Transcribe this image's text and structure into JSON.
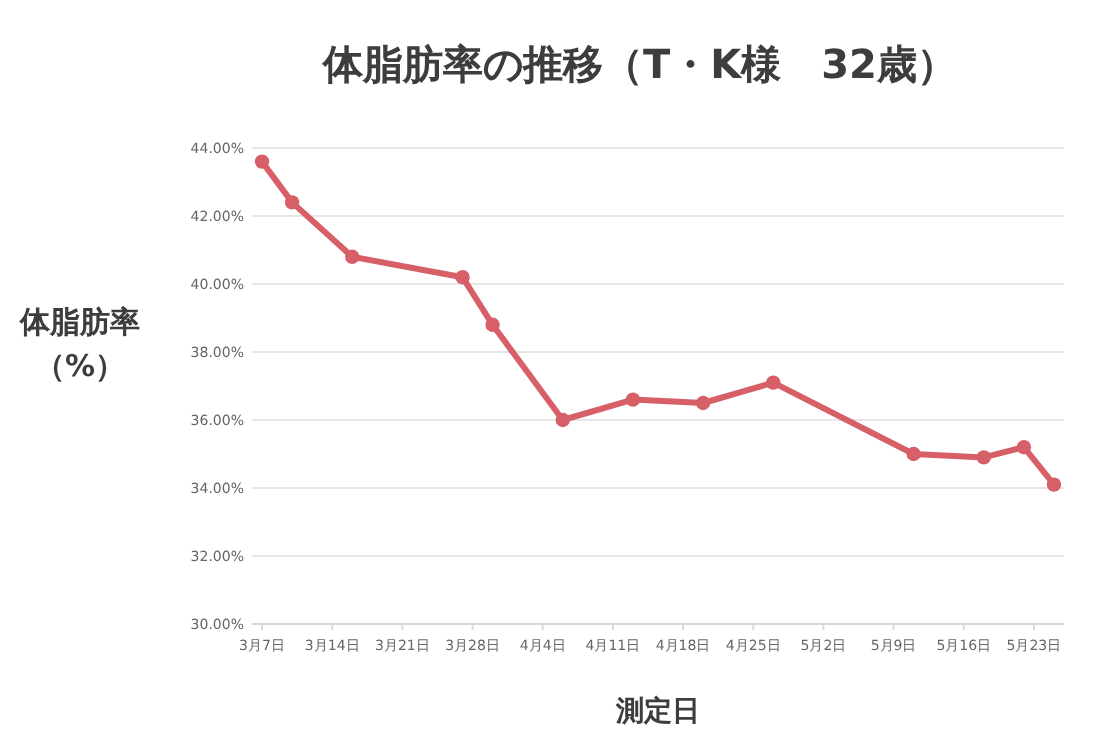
{
  "chart_data": {
    "type": "line",
    "title": "体脂肪率の推移（T・K様　32歳）",
    "xlabel": "測定日",
    "ylabel": "体脂肪率（%）",
    "x": [
      "--03-07",
      "--03-10",
      "--03-16",
      "--03-27",
      "--03-30",
      "--04-06",
      "--04-13",
      "--04-20",
      "--04-27",
      "--05-11",
      "--05-18",
      "--05-22",
      "--05-25"
    ],
    "series": [
      {
        "color": "#d75f68",
        "values": [
          43.6,
          42.4,
          40.8,
          40.2,
          38.8,
          36.0,
          36.6,
          36.5,
          37.1,
          35.0,
          34.9,
          35.2,
          34.1
        ]
      }
    ],
    "xlim": [
      "--03-06",
      "--05-26"
    ],
    "xticks": [
      {
        "value": "--03-07",
        "label": "3月7日"
      },
      {
        "value": "--03-14",
        "label": "3月14日"
      },
      {
        "value": "--03-21",
        "label": "3月21日"
      },
      {
        "value": "--03-28",
        "label": "3月28日"
      },
      {
        "value": "--04-04",
        "label": "4月4日"
      },
      {
        "value": "--04-11",
        "label": "4月11日"
      },
      {
        "value": "--04-18",
        "label": "4月18日"
      },
      {
        "value": "--04-25",
        "label": "4月25日"
      },
      {
        "value": "--05-02",
        "label": "5月2日"
      },
      {
        "value": "--05-09",
        "label": "5月9日"
      },
      {
        "value": "--05-16",
        "label": "5月16日"
      },
      {
        "value": "--05-23",
        "label": "5月23日"
      }
    ],
    "ylim": [
      30,
      44
    ],
    "yticks": [
      {
        "value": 30,
        "label": "30.00%"
      },
      {
        "value": 32,
        "label": "32.00%"
      },
      {
        "value": 34,
        "label": "34.00%"
      },
      {
        "value": 36,
        "label": "36.00%"
      },
      {
        "value": 38,
        "label": "38.00%"
      },
      {
        "value": 40,
        "label": "40.00%"
      },
      {
        "value": 42,
        "label": "42.00%"
      },
      {
        "value": 44,
        "label": "44.00%"
      }
    ],
    "grid": "y",
    "marker": "circle",
    "line_style": "solid"
  }
}
